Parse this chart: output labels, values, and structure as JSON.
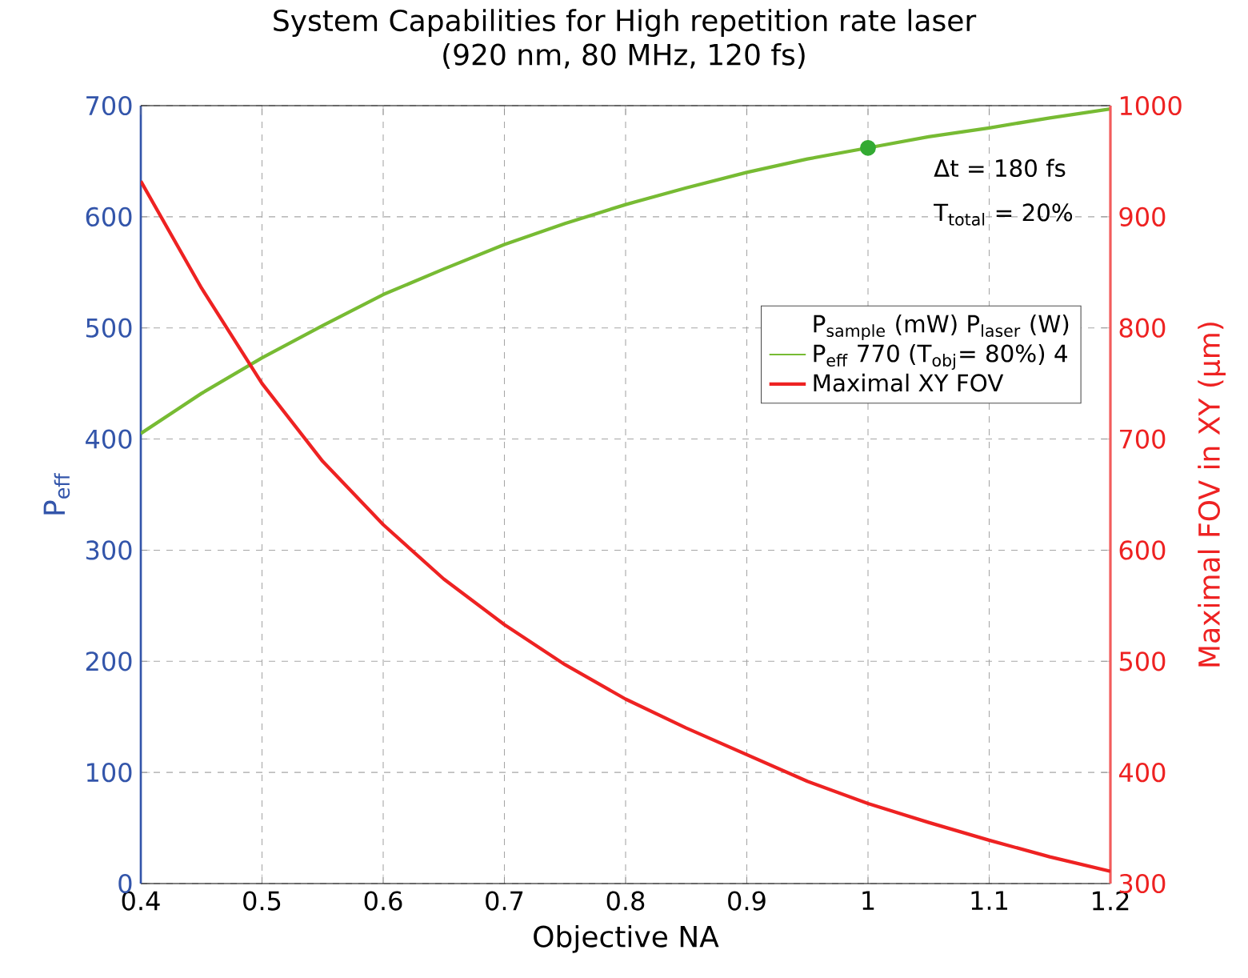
{
  "chart_data": {
    "type": "line",
    "title": "System Capabilities for High repetition rate laser",
    "subtitle": "(920 nm, 80 MHz, 120 fs)",
    "xlabel": "Objective NA",
    "ylabel": "P$_{eff}$",
    "y2label": "Maximal FOV in XY (µm)",
    "legend_title": "P$_{sample}$ (mW)   P$_{laser}$ (W)",
    "x": [
      0.4,
      0.45,
      0.5,
      0.55,
      0.6,
      0.65,
      0.7,
      0.75,
      0.8,
      0.85,
      0.9,
      0.95,
      1.0,
      1.05,
      1.1,
      1.15,
      1.2
    ],
    "series": [
      {
        "name": "P$_{eff}$     770 (T$_{obj}$= 80%)    4",
        "color": "#77bb33",
        "values": [
          405,
          441,
          473,
          502,
          530,
          553,
          575,
          594,
          611,
          626,
          640,
          652,
          662,
          672,
          680,
          689,
          697
        ]
      },
      {
        "name": "Maximal XY FOV",
        "color": "#ee2222",
        "axis": "y2",
        "values": [
          932,
          836,
          750,
          680,
          623,
          574,
          533,
          497,
          466,
          440,
          416,
          392,
          372,
          355,
          339,
          324,
          311
        ]
      },
      {
        "type": "scatter",
        "color": "#33aa33",
        "marker": "circle",
        "x": [
          1.0
        ],
        "values": [
          662
        ]
      }
    ],
    "annotations": [
      "Δt = 180 fs",
      "T$_{total}$ = 20%"
    ],
    "xlim": [
      0.4,
      1.2
    ],
    "xticks": [
      0.4,
      0.5,
      0.6,
      0.7,
      0.8,
      0.9,
      1,
      1.1,
      1.2
    ],
    "ylim": [
      0,
      700
    ],
    "yticks": [
      0,
      100,
      200,
      300,
      400,
      500,
      600,
      700
    ],
    "y2lim": [
      300,
      1000
    ],
    "y2ticks": [
      300,
      400,
      500,
      600,
      700,
      800,
      900,
      1000
    ],
    "grid": true,
    "legend": "right",
    "marker": "none",
    "line_style": "solid"
  }
}
